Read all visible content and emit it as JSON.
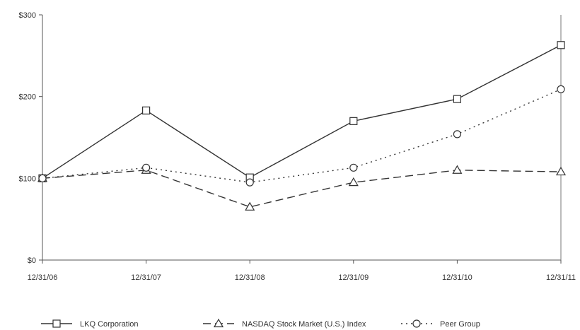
{
  "chart_data": {
    "type": "line",
    "title": "",
    "xlabel": "",
    "ylabel": "",
    "categories": [
      "12/31/06",
      "12/31/07",
      "12/31/08",
      "12/31/09",
      "12/31/10",
      "12/31/11"
    ],
    "ylim": [
      0,
      300
    ],
    "yticks": [
      {
        "value": 0,
        "label": "$0"
      },
      {
        "value": 100,
        "label": "$100"
      },
      {
        "value": 200,
        "label": "$200"
      },
      {
        "value": 300,
        "label": "$300"
      }
    ],
    "grid": false,
    "legend_position": "bottom",
    "series": [
      {
        "name": "LKQ Corporation",
        "values": [
          100,
          183,
          101,
          170,
          197,
          263
        ],
        "marker": "square",
        "dash": "solid",
        "color": "#333333"
      },
      {
        "name": "NASDAQ Stock Market (U.S.) Index",
        "values": [
          100,
          110,
          65,
          95,
          110,
          108
        ],
        "marker": "triangle",
        "dash": "dashed",
        "color": "#333333"
      },
      {
        "name": "Peer Group",
        "values": [
          100,
          113,
          95,
          113,
          154,
          209
        ],
        "marker": "circle",
        "dash": "dotted",
        "color": "#333333"
      }
    ]
  }
}
